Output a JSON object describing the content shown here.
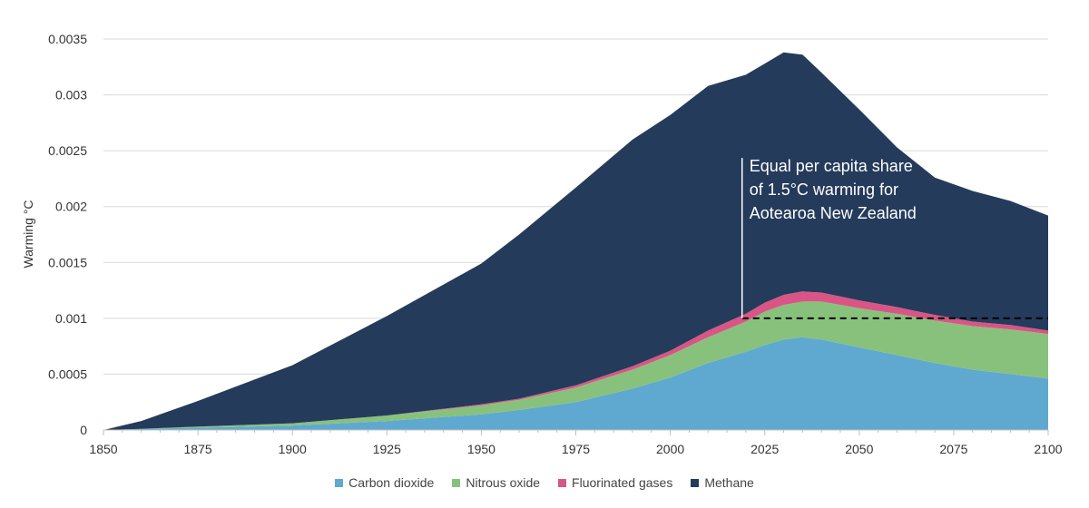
{
  "chart_data": {
    "type": "area",
    "stacked": true,
    "ylabel": "Warming °C",
    "xlabel": "",
    "xlim": [
      1850,
      2100
    ],
    "ylim": [
      0,
      0.0035
    ],
    "x_ticks": [
      "1850",
      "1875",
      "1900",
      "1925",
      "1950",
      "1975",
      "2000",
      "2025",
      "2050",
      "2075",
      "2100"
    ],
    "y_ticks": [
      "0",
      "0.0005",
      "0.001",
      "0.0015",
      "0.002",
      "0.0025",
      "0.003",
      "0.0035"
    ],
    "grid": "horizontal",
    "legend_position": "bottom",
    "x": [
      1850,
      1860,
      1875,
      1900,
      1925,
      1950,
      1960,
      1975,
      1990,
      2000,
      2010,
      2020,
      2025,
      2030,
      2035,
      2040,
      2050,
      2060,
      2070,
      2080,
      2090,
      2100
    ],
    "series": [
      {
        "name": "Carbon dioxide",
        "color": "#5fa9d0",
        "values": [
          0,
          1e-05,
          2e-05,
          4e-05,
          8e-05,
          0.00014,
          0.00018,
          0.00025,
          0.00037,
          0.00047,
          0.0006,
          0.0007,
          0.00076,
          0.00081,
          0.00083,
          0.00081,
          0.00074,
          0.00067,
          0.0006,
          0.00054,
          0.0005,
          0.00046
        ]
      },
      {
        "name": "Nitrous oxide",
        "color": "#88c17c",
        "values": [
          0,
          0,
          1e-05,
          2e-05,
          5e-05,
          8e-05,
          9e-05,
          0.00013,
          0.00017,
          0.0002,
          0.00023,
          0.00027,
          0.0003,
          0.00031,
          0.00032,
          0.00034,
          0.00035,
          0.00037,
          0.00038,
          0.00039,
          0.0004,
          0.0004
        ]
      },
      {
        "name": "Fluorinated gases",
        "color": "#d95585",
        "values": [
          0,
          0,
          0,
          0,
          0,
          1e-05,
          1e-05,
          2e-05,
          3e-05,
          4e-05,
          6e-05,
          7e-05,
          8e-05,
          9e-05,
          9e-05,
          8e-05,
          7e-05,
          6e-05,
          5e-05,
          4e-05,
          4e-05,
          3e-05
        ]
      },
      {
        "name": "Methane",
        "color": "#253b5b",
        "values": [
          0,
          7e-05,
          0.00023,
          0.00052,
          0.00089,
          0.00126,
          0.00147,
          0.00177,
          0.00203,
          0.00211,
          0.00219,
          0.00214,
          0.00214,
          0.00217,
          0.00212,
          0.00197,
          0.00171,
          0.00143,
          0.00123,
          0.00117,
          0.00111,
          0.00103
        ]
      }
    ],
    "reference_line": {
      "y": 0.001,
      "x_start": 2019,
      "x_end": 2100,
      "style": "dashed",
      "color": "#000000"
    },
    "annotation": {
      "lines": [
        "Equal per capita share",
        "of 1.5°C warming for",
        "Aotearoa New Zealand"
      ],
      "x": 2019,
      "y_from": 0.001,
      "y_to": 0.00237
    }
  }
}
